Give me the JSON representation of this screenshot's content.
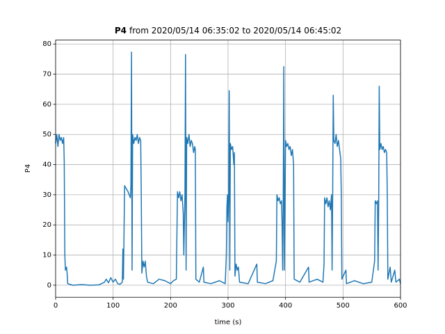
{
  "chart_data": {
    "type": "line",
    "title": [
      "P4",
      "from 2020/05/14 06:35:02 to 2020/05/14 06:45:02"
    ],
    "xlabel": "time (s)",
    "ylabel": "P4",
    "xlim": [
      0,
      600
    ],
    "xticks": [
      0,
      100,
      200,
      300,
      400,
      500,
      600
    ],
    "ylim": [
      -4,
      81.3
    ],
    "yticks": [
      0,
      10,
      20,
      30,
      40,
      50,
      60,
      70,
      80
    ],
    "grid": true,
    "color": "#1f77b4",
    "x": [
      0,
      2,
      4,
      6,
      8,
      10,
      12,
      14,
      15,
      16,
      17,
      19,
      20,
      21,
      30,
      45,
      60,
      75,
      85,
      88,
      92,
      96,
      100,
      104,
      108,
      112,
      116,
      117,
      118,
      120,
      123,
      126,
      128,
      130,
      131,
      132,
      133,
      134,
      136,
      138,
      140,
      142,
      144,
      146,
      148,
      149,
      150,
      152,
      154,
      156,
      158,
      160,
      170,
      180,
      190,
      200,
      205,
      210,
      212,
      214,
      216,
      218,
      220,
      222,
      223,
      225,
      226,
      227,
      228,
      230,
      232,
      234,
      236,
      238,
      240,
      242,
      243,
      244,
      250,
      257,
      258,
      270,
      285,
      295,
      297,
      298,
      299,
      300,
      301,
      302,
      303,
      304,
      306,
      308,
      310,
      311,
      312,
      314,
      316,
      318,
      320,
      335,
      350,
      351,
      365,
      378,
      384,
      385,
      387,
      389,
      391,
      393,
      394,
      395,
      396,
      397,
      398,
      400,
      402,
      404,
      406,
      408,
      410,
      412,
      414,
      415,
      425,
      440,
      441,
      455,
      465,
      467,
      468,
      470,
      472,
      474,
      476,
      478,
      480,
      481,
      482,
      483,
      484,
      486,
      488,
      490,
      492,
      494,
      496,
      497,
      498,
      505,
      506,
      520,
      535,
      550,
      555,
      556,
      558,
      560,
      561,
      562,
      563,
      564,
      566,
      568,
      570,
      572,
      574,
      576,
      577,
      578,
      582,
      584,
      590,
      592,
      598,
      600
    ],
    "values": [
      47,
      50,
      46,
      50,
      48,
      49,
      47,
      49,
      41,
      10,
      5,
      6,
      4,
      0.5,
      0,
      0.2,
      0,
      0.1,
      1,
      2,
      0.8,
      2.5,
      1,
      2,
      0.5,
      0.3,
      1,
      12,
      2,
      33,
      32,
      31,
      30,
      29,
      33,
      77.3,
      5,
      50,
      47,
      49,
      48,
      50,
      47,
      49,
      48,
      30,
      4,
      8,
      6,
      8,
      3,
      1,
      0.5,
      2,
      1.5,
      0.5,
      1.5,
      2,
      31,
      29,
      31,
      28,
      30,
      24,
      10,
      30,
      76.5,
      5,
      49,
      47,
      50,
      46,
      48,
      47,
      44,
      46,
      45,
      2,
      1,
      6,
      1,
      0.5,
      1.5,
      0.5,
      10,
      26,
      30,
      21,
      30,
      64.5,
      5,
      47,
      45,
      46,
      40,
      44,
      3,
      7,
      5,
      6,
      1,
      0.5,
      7,
      1,
      0.5,
      1.5,
      8,
      30,
      28,
      29,
      27,
      28,
      20,
      5,
      28,
      72.5,
      5,
      48,
      46,
      47,
      45,
      46,
      43,
      45,
      40,
      2,
      1,
      6,
      1,
      2,
      1,
      7,
      29,
      27,
      29,
      26,
      28,
      25,
      30,
      5,
      30,
      63,
      48,
      47,
      50,
      46,
      48,
      45,
      42,
      30,
      2,
      5,
      0.5,
      1.5,
      0.5,
      1,
      8,
      28,
      27,
      28,
      5,
      25,
      66,
      45,
      47,
      45,
      46,
      44,
      45,
      44,
      30,
      2,
      6,
      1,
      5,
      1,
      2,
      0.5
    ]
  }
}
